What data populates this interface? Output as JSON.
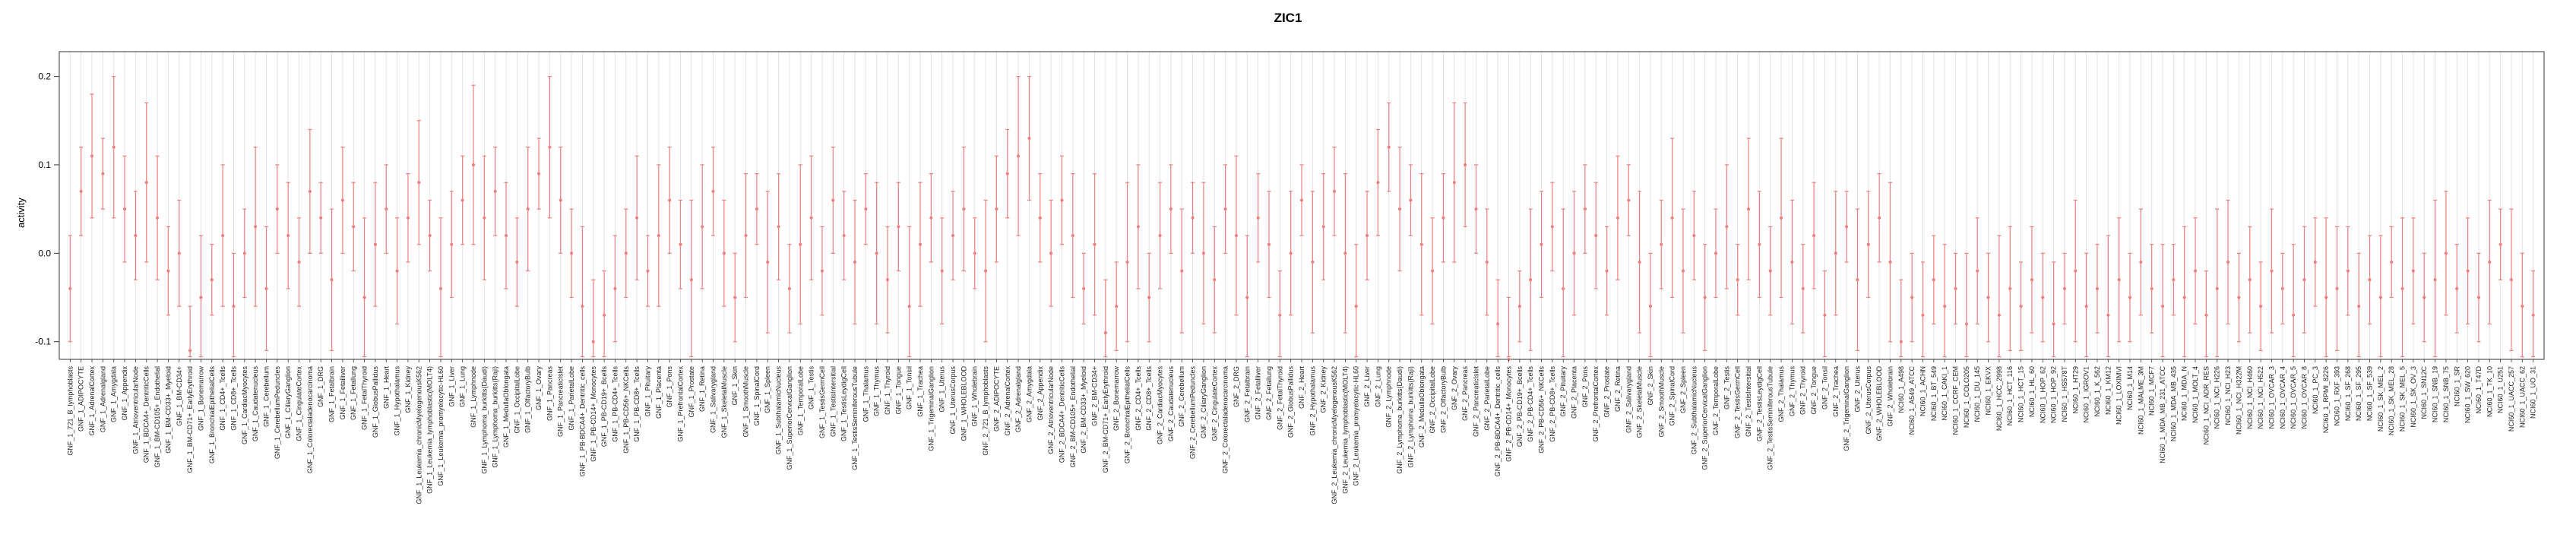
{
  "title": "ZIC1",
  "colors": {
    "point": "#ee7f7f",
    "grid": "#e3e3e3",
    "axis": "#333333",
    "label_text": "#222222",
    "background": "#ffffff"
  },
  "chart_data": {
    "type": "scatter",
    "title": "ZIC1",
    "xlabel": "",
    "ylabel": "activity",
    "grid": true,
    "error_bars": true,
    "legend": "none",
    "x_label_rotation": 90,
    "ylim": [
      -0.12,
      0.228
    ],
    "yticks": [
      -0.1,
      0.0,
      0.1,
      0.2
    ],
    "ytick_labels": [
      "-0.1",
      "0.0",
      "0.1",
      "0.2"
    ],
    "categories": [
      "GNF_1_721_B_lymphoblasts",
      "GNF_1_ADIPOCYTE",
      "GNF_1_AdrenalCortex",
      "GNF_1_Adrenalgland",
      "GNF_1_Amygdala",
      "GNF_1_Appendix",
      "GNF_1_AtrioventricularNode",
      "GNF_1_BDCA4+_DentriticCells",
      "GNF_1_BM-CD105+_Endothelial",
      "GNF_1_BM-CD33+_Myeloid",
      "GNF_1_BM-CD34+",
      "GNF_1_BM-CD71+_EarlyErythroid",
      "GNF_1_Bonemarrow",
      "GNF_1_BronchialEpithelialCells",
      "GNF_1_CD4+_Tcells",
      "GNF_1_CD8+_Tcells",
      "GNF_1_CardiacMyocytes",
      "GNF_1_Caudatenucleus",
      "GNF_1_Cerebellum",
      "GNF_1_CerebellumPeduncles",
      "GNF_1_CiliaryGanglion",
      "GNF_1_CingulateCortex",
      "GNF_1_Colorectaladenocarcinoma",
      "GNF_1_DRG",
      "GNF_1_Fetalbrain",
      "GNF_1_Fetalliver",
      "GNF_1_Fetallung",
      "GNF_1_FetalThyroid",
      "GNF_1_GlobusPallidus",
      "GNF_1_Heart",
      "GNF_1_Hypothalamus",
      "GNF_1_Kidney",
      "GNF_1_Leukemia_chronicMyelogenousK562",
      "GNF_1_Leukemia_lymphoblastic(MOLT4)",
      "GNF_1_Leukemia_promyelocytic-HL60",
      "GNF_1_Liver",
      "GNF_1_Lung",
      "GNF_1_Lymphnode",
      "GNF_1_Lymphoma_burkitts(Daudi)",
      "GNF_1_Lymphoma_burkitts(Raji)",
      "GNF_1_MedullaOblongata",
      "GNF_1_OccipitalLobe",
      "GNF_1_OlfactoryBulb",
      "GNF_1_Ovary",
      "GNF_1_Pancreas",
      "GNF_1_PancreaticIslet",
      "GNF_1_ParietalLobe",
      "GNF_1_PB-BDCA4+_Dentritic_cells",
      "GNF_1_PB-CD14+_Monocytes",
      "GNF_1_PB-CD19+_Bcells",
      "GNF_1_PB-CD4+_Tcells",
      "GNF_1_PB-CD56+_NKCells",
      "GNF_1_PB-CD8+_Tcells",
      "GNF_1_Pituitary",
      "GNF_1_Placenta",
      "GNF_1_Pons",
      "GNF_1_PrefrontalCortex",
      "GNF_1_Prostate",
      "GNF_1_Retina",
      "GNF_1_Salivarygland",
      "GNF_1_SkeletalMuscle",
      "GNF_1_Skin",
      "GNF_1_SmoothMuscle",
      "GNF_1_SpinalCord",
      "GNF_1_Spleen",
      "GNF_1_SubthalamicNucleus",
      "GNF_1_SuperiorCervicalGanglion",
      "GNF_1_TemporalLobe",
      "GNF_1_Testis",
      "GNF_1_TestisGermCell",
      "GNF_1_TestisIntersitial",
      "GNF_1_TestisLeydigCell",
      "GNF_1_TestisSeminiferousTubule",
      "GNF_1_Thalamus",
      "GNF_1_Thymus",
      "GNF_1_Thyroid",
      "GNF_1_Tongue",
      "GNF_1_Tonsil",
      "GNF_1_Trachea",
      "GNF_1_TrigeminalGanglion",
      "GNF_1_Uterus",
      "GNF_1_UterusCorpus",
      "GNF_1_WHOLEBLOOD",
      "GNF_1_Wholebrain",
      "GNF_2_721_B_lymphoblasts",
      "GNF_2_ADIPOCYTE",
      "GNF_2_AdrenalCortex",
      "GNF_2_Adrenalgland",
      "GNF_2_Amygdala",
      "GNF_2_Appendix",
      "GNF_2_AtrioventricularNode",
      "GNF_2_BDCA4+_DentriticCells",
      "GNF_2_BM-CD105+_Endothelial",
      "GNF_2_BM-CD33+_Myeloid",
      "GNF_2_BM-CD34+",
      "GNF_2_BM-CD71+_EarlyErythroid",
      "GNF_2_Bonemarrow",
      "GNF_2_BronchialEpithelialCells",
      "GNF_2_CD4+_Tcells",
      "GNF_2_CD8+_Tcells",
      "GNF_2_CardiacMyocytes",
      "GNF_2_Caudatenucleus",
      "GNF_2_Cerebellum",
      "GNF_2_CerebellumPeduncles",
      "GNF_2_CiliaryGanglion",
      "GNF_2_CingulateCortex",
      "GNF_2_Colorectaladenocarcinoma",
      "GNF_2_DRG",
      "GNF_2_Fetalbrain",
      "GNF_2_Fetalliver",
      "GNF_2_Fetallung",
      "GNF_2_FetalThyroid",
      "GNF_2_GlobusPallidus",
      "GNF_2_Heart",
      "GNF_2_Hypothalamus",
      "GNF_2_Kidney",
      "GNF_2_Leukemia_chronicMyelogenousK562",
      "GNF_2_Leukemia_lymphoblastic(MOLT4)",
      "GNF_2_Leukemia_promyelocytic-HL60",
      "GNF_2_Liver",
      "GNF_2_Lung",
      "GNF_2_Lymphnode",
      "GNF_2_Lymphoma_burkitts(Daudi)",
      "GNF_2_Lymphoma_burkitts(Raji)",
      "GNF_2_MedullaOblongata",
      "GNF_2_OccipitalLobe",
      "GNF_2_OlfactoryBulb",
      "GNF_2_Ovary",
      "GNF_2_Pancreas",
      "GNF_2_PancreaticIslet",
      "GNF_2_ParietalLobe",
      "GNF_2_PB-BDCA4+_Dentritic_cells",
      "GNF_2_PB-CD14+_Monocytes",
      "GNF_2_PB-CD19+_Bcells",
      "GNF_2_PB-CD4+_Tcells",
      "GNF_2_PB-CD56+_NKCells",
      "GNF_2_PB-CD8+_Tcells",
      "GNF_2_Pituitary",
      "GNF_2_Placenta",
      "GNF_2_Pons",
      "GNF_2_PrefrontalCortex",
      "GNF_2_Prostate",
      "GNF_2_Retina",
      "GNF_2_Salivarygland",
      "GNF_2_SkeletalMuscle",
      "GNF_2_Skin",
      "GNF_2_SmoothMuscle",
      "GNF_2_SpinalCord",
      "GNF_2_Spleen",
      "GNF_2_SubthalamicNucleus",
      "GNF_2_SuperiorCervicalGanglion",
      "GNF_2_TemporalLobe",
      "GNF_2_Testis",
      "GNF_2_TestisGermCell",
      "GNF_2_TestisIntersitial",
      "GNF_2_TestisLeydigCell",
      "GNF_2_TestisSeminiferousTubule",
      "GNF_2_Thalamus",
      "GNF_2_Thymus",
      "GNF_2_Thyroid",
      "GNF_2_Tongue",
      "GNF_2_Tonsil",
      "GNF_2_Trachea",
      "GNF_2_TrigeminalGanglion",
      "GNF_2_Uterus",
      "GNF_2_UterusCorpus",
      "GNF_2_WHOLEBLOOD",
      "GNF_2_Wholebrain",
      "NCI60_1_A498",
      "NCI60_1_A549_ATCC",
      "NCI60_1_ACHN",
      "NCI60_1_BT_549",
      "NCI60_1_CAKI_1",
      "NCI60_1_CCRF_CEM",
      "NCI60_1_COLO205",
      "NCI60_1_DU_145",
      "NCI60_1_EKVX",
      "NCI60_1_HCC_2998",
      "NCI60_1_HCT_116",
      "NCI60_1_HCT_15",
      "NCI60_1_HL_60",
      "NCI60_1_HOP_62",
      "NCI60_1_HOP_92",
      "NCI60_1_HS578T",
      "NCI60_1_HT29",
      "NCI60_1_IGROV1",
      "NCI60_1_K_562",
      "NCI60_1_KM12",
      "NCI60_1_LOXIMVI",
      "NCI60_1_M14",
      "NCI60_1_MALME_3M",
      "NCI60_1_MCF7",
      "NCI60_1_MDA_MB_231_ATCC",
      "NCI60_1_MDA_MB_435",
      "NCI60_1_MDA_N",
      "NCI60_1_MOLT_4",
      "NCI60_1_NCI_ADR_RES",
      "NCI60_1_NCI_H226",
      "NCI60_1_NCI_H23",
      "NCI60_1_NCI_H322M",
      "NCI60_1_NCI_H460",
      "NCI60_1_NCI_H522",
      "NCI60_1_OVCAR_3",
      "NCI60_1_OVCAR_4",
      "NCI60_1_OVCAR_5",
      "NCI60_1_OVCAR_8",
      "NCI60_1_PC_3",
      "NCI60_1_RPMI_8226",
      "NCI60_1_RXF_393",
      "NCI60_1_SF_268",
      "NCI60_1_SF_295",
      "NCI60_1_SF_539",
      "NCI60_1_SK_MEL_2",
      "NCI60_1_SK_MEL_28",
      "NCI60_1_SK_MEL_5",
      "NCI60_1_SK_OV_3",
      "NCI60_1_SN12C",
      "NCI60_1_SNB_19",
      "NCI60_1_SNB_75",
      "NCI60_1_SR",
      "NCI60_1_SW_620",
      "NCI60_1_T47D",
      "NCI60_1_TK_10",
      "NCI60_1_U251",
      "NCI60_1_UACC_257",
      "NCI60_1_UACC_62",
      "NCI60_1_UO_31"
    ],
    "values": [
      -0.04,
      0.07,
      0.11,
      0.09,
      0.12,
      0.05,
      0.02,
      0.08,
      0.04,
      -0.02,
      0.0,
      -0.11,
      -0.05,
      -0.03,
      0.02,
      -0.06,
      0.0,
      0.03,
      -0.04,
      0.05,
      0.02,
      -0.01,
      0.07,
      0.04,
      -0.03,
      0.06,
      0.03,
      -0.05,
      0.01,
      0.05,
      -0.02,
      0.04,
      0.08,
      0.02,
      -0.04,
      0.01,
      0.06,
      0.1,
      0.04,
      0.07,
      0.02,
      -0.01,
      0.05,
      0.09,
      0.12,
      0.06,
      0.0,
      -0.06,
      -0.1,
      -0.07,
      -0.04,
      0.0,
      0.04,
      -0.02,
      0.02,
      0.06,
      0.01,
      -0.03,
      0.03,
      0.07,
      0.0,
      -0.05,
      0.02,
      0.05,
      -0.01,
      0.03,
      -0.04,
      0.01,
      0.04,
      -0.02,
      0.06,
      0.02,
      -0.01,
      0.05,
      0.0,
      -0.03,
      0.03,
      -0.06,
      0.01,
      0.04,
      -0.02,
      0.02,
      0.05,
      0.0,
      -0.02,
      0.05,
      0.09,
      0.11,
      0.13,
      0.04,
      0.0,
      0.06,
      0.02,
      -0.04,
      0.01,
      -0.09,
      -0.06,
      -0.01,
      0.03,
      -0.05,
      0.02,
      0.05,
      -0.02,
      0.04,
      0.0,
      -0.03,
      0.05,
      0.02,
      -0.05,
      0.04,
      0.01,
      -0.07,
      0.0,
      0.06,
      -0.01,
      0.03,
      0.07,
      0.0,
      -0.06,
      0.02,
      0.08,
      0.12,
      0.05,
      0.06,
      0.01,
      -0.02,
      0.04,
      0.08,
      0.1,
      0.05,
      -0.01,
      -0.08,
      -0.12,
      -0.06,
      -0.03,
      0.01,
      0.03,
      -0.04,
      0.0,
      0.05,
      0.02,
      -0.02,
      0.04,
      0.06,
      -0.01,
      -0.06,
      0.01,
      0.04,
      -0.02,
      0.02,
      -0.05,
      0.0,
      0.03,
      -0.03,
      0.05,
      0.01,
      -0.02,
      0.04,
      -0.01,
      -0.04,
      0.02,
      -0.07,
      0.0,
      0.03,
      -0.03,
      0.01,
      0.04,
      -0.01,
      -0.1,
      -0.05,
      -0.07,
      -0.03,
      -0.06,
      -0.04,
      -0.08,
      -0.02,
      -0.05,
      -0.07,
      -0.04,
      -0.06,
      -0.03,
      -0.05,
      -0.08,
      -0.04,
      -0.02,
      -0.06,
      -0.04,
      -0.07,
      -0.03,
      -0.05,
      -0.01,
      -0.04,
      -0.06,
      -0.03,
      -0.05,
      -0.02,
      -0.07,
      -0.04,
      -0.01,
      -0.05,
      -0.03,
      -0.06,
      -0.02,
      -0.04,
      -0.07,
      -0.03,
      -0.01,
      -0.05,
      -0.04,
      -0.02,
      -0.06,
      -0.03,
      -0.05,
      -0.01,
      -0.04,
      -0.02,
      -0.05,
      -0.03,
      0.0,
      -0.04,
      -0.02,
      -0.05,
      -0.01,
      0.01,
      -0.03,
      -0.06,
      -0.07
    ],
    "errors": [
      0.06,
      0.05,
      0.07,
      0.04,
      0.08,
      0.06,
      0.05,
      0.09,
      0.07,
      0.05,
      0.06,
      0.05,
      0.07,
      0.04,
      0.08,
      0.06,
      0.05,
      0.09,
      0.07,
      0.05,
      0.06,
      0.05,
      0.07,
      0.04,
      0.08,
      0.06,
      0.05,
      0.09,
      0.07,
      0.05,
      0.06,
      0.05,
      0.07,
      0.04,
      0.08,
      0.06,
      0.05,
      0.09,
      0.07,
      0.05,
      0.06,
      0.05,
      0.07,
      0.04,
      0.08,
      0.06,
      0.05,
      0.09,
      0.07,
      0.05,
      0.06,
      0.05,
      0.07,
      0.04,
      0.08,
      0.06,
      0.05,
      0.09,
      0.07,
      0.05,
      0.06,
      0.05,
      0.07,
      0.04,
      0.08,
      0.06,
      0.05,
      0.09,
      0.07,
      0.05,
      0.06,
      0.05,
      0.07,
      0.04,
      0.08,
      0.06,
      0.05,
      0.09,
      0.07,
      0.05,
      0.06,
      0.05,
      0.07,
      0.04,
      0.08,
      0.06,
      0.05,
      0.09,
      0.07,
      0.05,
      0.06,
      0.05,
      0.07,
      0.04,
      0.08,
      0.06,
      0.05,
      0.09,
      0.07,
      0.05,
      0.06,
      0.05,
      0.07,
      0.04,
      0.08,
      0.06,
      0.05,
      0.09,
      0.07,
      0.05,
      0.06,
      0.05,
      0.07,
      0.04,
      0.08,
      0.06,
      0.05,
      0.09,
      0.07,
      0.05,
      0.06,
      0.05,
      0.07,
      0.04,
      0.08,
      0.06,
      0.05,
      0.09,
      0.07,
      0.05,
      0.06,
      0.05,
      0.07,
      0.04,
      0.08,
      0.06,
      0.05,
      0.09,
      0.07,
      0.05,
      0.06,
      0.05,
      0.07,
      0.04,
      0.08,
      0.06,
      0.05,
      0.09,
      0.07,
      0.05,
      0.06,
      0.05,
      0.07,
      0.04,
      0.08,
      0.06,
      0.05,
      0.09,
      0.07,
      0.05,
      0.06,
      0.05,
      0.07,
      0.04,
      0.08,
      0.06,
      0.05,
      0.09,
      0.07,
      0.05,
      0.06,
      0.05,
      0.07,
      0.04,
      0.08,
      0.06,
      0.05,
      0.09,
      0.07,
      0.05,
      0.06,
      0.05,
      0.07,
      0.04,
      0.08,
      0.06,
      0.05,
      0.09,
      0.07,
      0.05,
      0.06,
      0.05,
      0.07,
      0.04,
      0.08,
      0.06,
      0.05,
      0.09,
      0.07,
      0.05,
      0.06,
      0.05,
      0.07,
      0.04,
      0.08,
      0.06,
      0.05,
      0.09,
      0.07,
      0.05,
      0.06,
      0.05,
      0.07,
      0.04,
      0.08,
      0.06,
      0.05,
      0.09,
      0.07,
      0.05,
      0.06,
      0.05,
      0.07,
      0.04,
      0.08,
      0.06,
      0.05
    ]
  }
}
